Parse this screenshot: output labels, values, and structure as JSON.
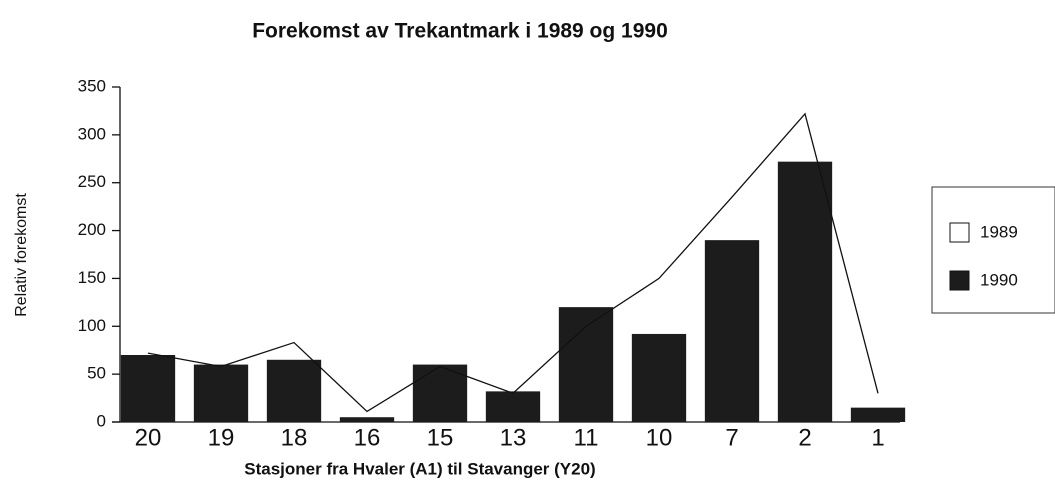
{
  "chart_data": {
    "type": "bar",
    "title": "Forekomst av Trekantmark i 1989 og 1990",
    "x_label": "Stasjoner fra  Hvaler (A1) til Stavanger (Y20)",
    "y_label": "Relativ forekomst",
    "categories": [
      "20",
      "19",
      "18",
      "16",
      "15",
      "13",
      "11",
      "10",
      "7",
      "2",
      "1"
    ],
    "series": [
      {
        "name": "1989",
        "type": "line",
        "color": "#ffffff",
        "values": [
          72,
          58,
          83,
          11,
          58,
          30,
          100,
          150,
          235,
          322,
          30
        ]
      },
      {
        "name": "1990",
        "type": "bar",
        "color": "#1c1c1c",
        "values": [
          70,
          60,
          65,
          5,
          60,
          32,
          120,
          92,
          190,
          272,
          15
        ]
      }
    ],
    "ylim": [
      0,
      350
    ],
    "yticks": [
      0,
      50,
      100,
      150,
      200,
      250,
      300,
      350
    ],
    "legend": "right"
  }
}
